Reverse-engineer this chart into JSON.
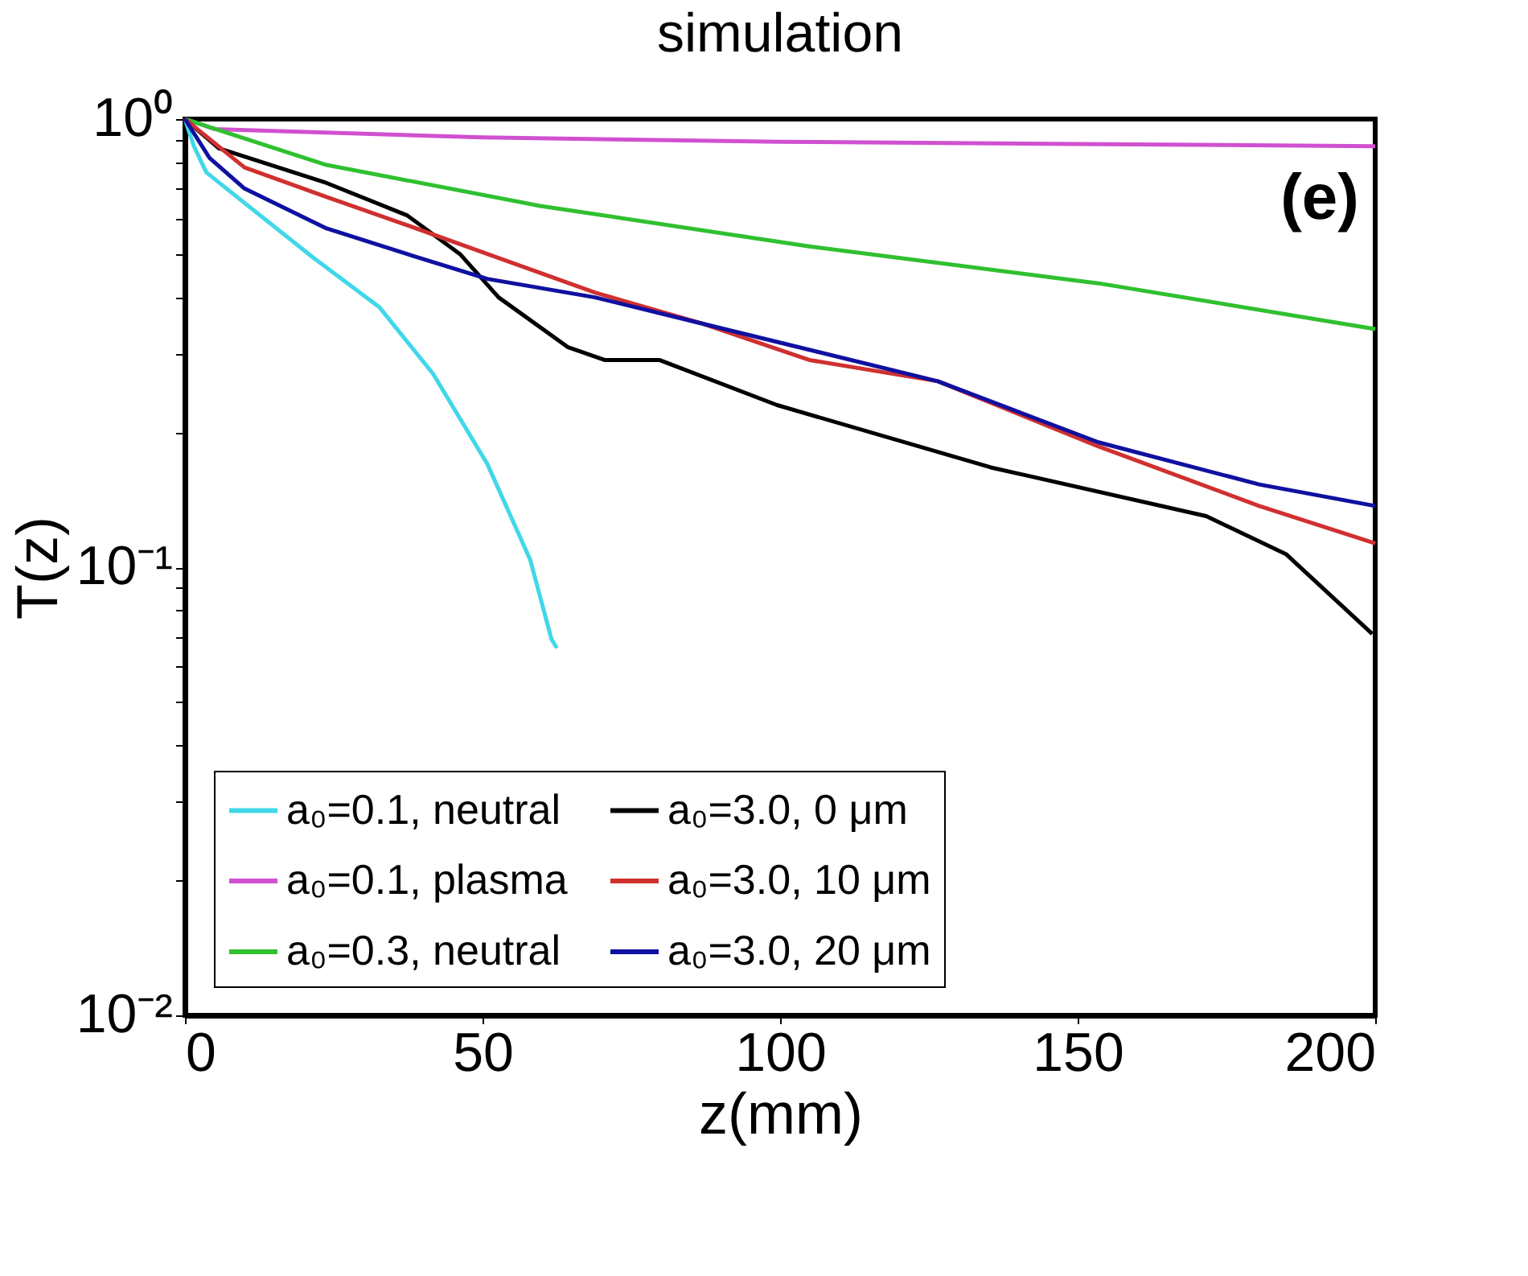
{
  "chart_data": {
    "type": "line",
    "title": "simulation",
    "xlabel": "z(mm)",
    "ylabel": "T(z)",
    "xlim": [
      0,
      200
    ],
    "xticks": [
      0,
      50,
      100,
      150,
      200
    ],
    "ylim": [
      0.01,
      1
    ],
    "log": true,
    "yticks": [
      {
        "value": 0.01,
        "label": "10⁻²"
      },
      {
        "value": 0.02,
        "label": null
      },
      {
        "value": 0.03,
        "label": null
      },
      {
        "value": 0.04,
        "label": null
      },
      {
        "value": 0.05,
        "label": null
      },
      {
        "value": 0.06,
        "label": null
      },
      {
        "value": 0.07,
        "label": null
      },
      {
        "value": 0.08,
        "label": null
      },
      {
        "value": 0.09,
        "label": null
      },
      {
        "value": 0.1,
        "label": "10⁻¹"
      },
      {
        "value": 0.2,
        "label": null
      },
      {
        "value": 0.3,
        "label": null
      },
      {
        "value": 0.4,
        "label": null
      },
      {
        "value": 0.5,
        "label": null
      },
      {
        "value": 0.6,
        "label": null
      },
      {
        "value": 0.7,
        "label": null
      },
      {
        "value": 0.8,
        "label": null
      },
      {
        "value": 0.9,
        "label": null
      },
      {
        "value": 1,
        "label": "10⁰"
      }
    ],
    "grid": false,
    "legend": "bottom left",
    "line_style": "solid",
    "marker": "none",
    "annotations": [
      "(e)"
    ],
    "series": [
      {
        "name": "a₀=0.1, neutral",
        "color": "#40d8e8",
        "x": [
          0,
          1.5,
          3.6,
          12.6,
          21.6,
          32.7,
          41.7,
          50.8,
          58,
          61.6,
          62.5
        ],
        "values": [
          1,
          0.87,
          0.76,
          0.61,
          0.49,
          0.38,
          0.27,
          0.17,
          0.104,
          0.069,
          0.066
        ]
      },
      {
        "name": "a₀=0.1, plasma",
        "color": "#d050d0",
        "x": [
          0,
          5,
          50,
          100,
          150,
          200
        ],
        "values": [
          1,
          0.95,
          0.91,
          0.89,
          0.88,
          0.87
        ]
      },
      {
        "name": "a₀=0.3, neutral",
        "color": "#30c030",
        "x": [
          0,
          23.8,
          59.7,
          104.9,
          153.5,
          200
        ],
        "values": [
          1,
          0.79,
          0.64,
          0.52,
          0.43,
          0.34
        ]
      },
      {
        "name": "a₀=3.0, 0 μm",
        "color": "#000000",
        "x": [
          0,
          5.7,
          23.8,
          37.3,
          46.2,
          52.7,
          64.3,
          70.5,
          79.7,
          99.5,
          135.4,
          171.6,
          185,
          199.5
        ],
        "values": [
          1,
          0.86,
          0.72,
          0.61,
          0.5,
          0.4,
          0.31,
          0.29,
          0.29,
          0.23,
          0.167,
          0.13,
          0.107,
          0.071
        ]
      },
      {
        "name": "a₀=3.0, 10 μm",
        "color": "#d03030",
        "x": [
          0,
          10,
          23.8,
          37.3,
          50.8,
          68.9,
          86.8,
          104.9,
          126.5,
          153.5,
          180.5,
          200
        ],
        "values": [
          1,
          0.78,
          0.67,
          0.58,
          0.5,
          0.41,
          0.35,
          0.29,
          0.26,
          0.186,
          0.137,
          0.113
        ]
      },
      {
        "name": "a₀=3.0, 20 μm",
        "color": "#1010a0",
        "x": [
          0,
          4.1,
          10,
          23.8,
          37.3,
          50.8,
          68.9,
          86.8,
          126.5,
          153.5,
          180.5,
          200
        ],
        "values": [
          1,
          0.82,
          0.7,
          0.57,
          0.5,
          0.44,
          0.4,
          0.35,
          0.26,
          0.19,
          0.153,
          0.137
        ]
      }
    ]
  }
}
